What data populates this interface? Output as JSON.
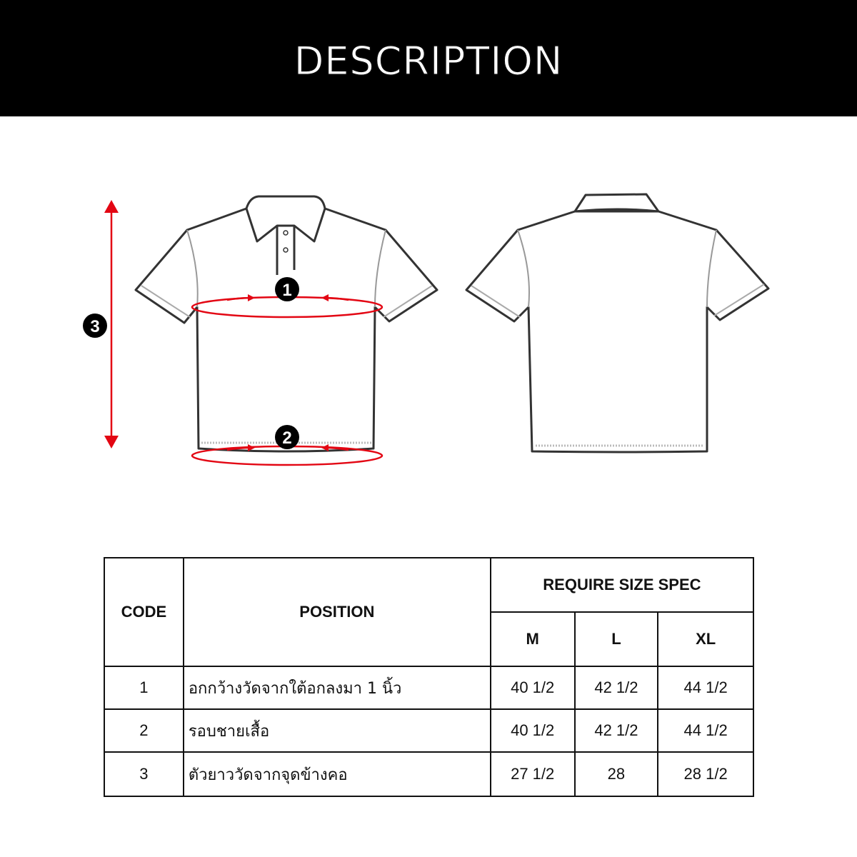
{
  "header": {
    "title": "DESCRIPTION"
  },
  "diagram": {
    "markers": [
      "1",
      "2",
      "3"
    ],
    "accent_color": "#e30613",
    "views": [
      "front",
      "back"
    ]
  },
  "table": {
    "headers": {
      "code": "CODE",
      "position": "POSITION",
      "spec": "REQUIRE SIZE SPEC",
      "sizes": [
        "M",
        "L",
        "XL"
      ]
    },
    "rows": [
      {
        "code": "1",
        "position": "อกกว้างวัดจากใต้อกลงมา 1 นิ้ว",
        "values": [
          "40 1/2",
          "42 1/2",
          "44 1/2"
        ]
      },
      {
        "code": "2",
        "position": "รอบชายเสื้อ",
        "values": [
          "40 1/2",
          "42 1/2",
          "44 1/2"
        ]
      },
      {
        "code": "3",
        "position": "ตัวยาววัดจากจุดข้างคอ",
        "values": [
          "27 1/2",
          "28",
          "28 1/2"
        ]
      }
    ]
  }
}
